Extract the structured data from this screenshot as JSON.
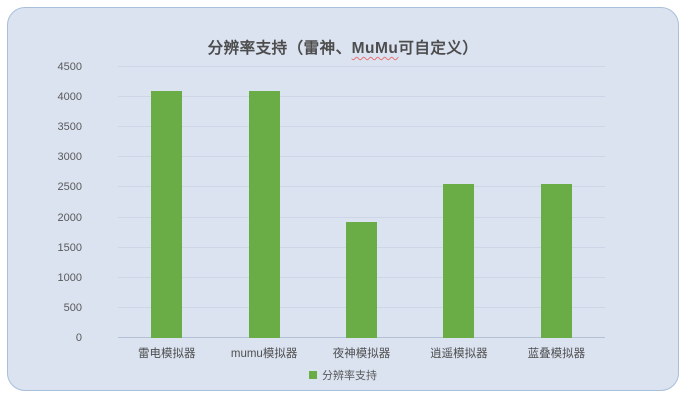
{
  "title": {
    "pre": "分辨率支持（雷神、",
    "highlight": "MuMu",
    "post": "可自定义）",
    "full": "分辨率支持（雷神、MuMu可自定义）"
  },
  "legend": {
    "label": "分辨率支持"
  },
  "colors": {
    "bar": "#6aad47",
    "card_background": "#dbe3f1",
    "card_border": "#a9bfdb",
    "gridline": "#ccd6e6",
    "text": "#595959",
    "spellcheck_underline": "#e57373"
  },
  "chart_data": {
    "type": "bar",
    "title": "分辨率支持（雷神、MuMu可自定义）",
    "categories": [
      "雷电模拟器",
      "mumu模拟器",
      "夜神模拟器",
      "逍遥模拟器",
      "蓝叠模拟器"
    ],
    "series": [
      {
        "name": "分辨率支持",
        "values": [
          4100,
          4100,
          1920,
          2560,
          2560
        ]
      }
    ],
    "xlabel": "",
    "ylabel": "",
    "ylim": [
      0,
      4500
    ],
    "yticks": [
      0,
      500,
      1000,
      1500,
      2000,
      2500,
      3000,
      3500,
      4000,
      4500
    ],
    "grid": true,
    "legend_position": "bottom"
  }
}
